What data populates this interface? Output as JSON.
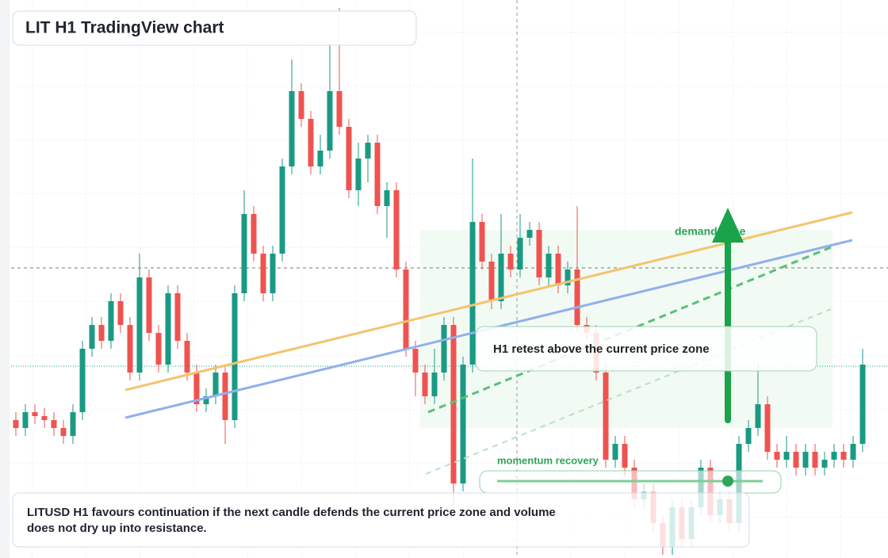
{
  "chart_data": {
    "type": "candlestick",
    "title": "LIT H1 TradingView chart",
    "up_color": "#1a9a83",
    "down_color": "#ef5350",
    "ylim": [
      0,
      704
    ],
    "annotations": {
      "zone": "demand zone",
      "retest": "H1 retest above the current price zone",
      "momentum": "momentum recovery"
    },
    "caption": "LITUSD H1 favours continuation if the next candle defends the current price zone and volume does not dry up into resistance.",
    "candles": [
      [
        174,
        184,
        154,
        164
      ],
      [
        164,
        194,
        154,
        184
      ],
      [
        184,
        194,
        169,
        179
      ],
      [
        179,
        189,
        164,
        174
      ],
      [
        174,
        184,
        154,
        164
      ],
      [
        164,
        174,
        144,
        154
      ],
      [
        154,
        194,
        144,
        184
      ],
      [
        184,
        274,
        174,
        264
      ],
      [
        264,
        304,
        254,
        294
      ],
      [
        294,
        304,
        264,
        274
      ],
      [
        274,
        334,
        264,
        324
      ],
      [
        324,
        334,
        284,
        294
      ],
      [
        294,
        304,
        224,
        234
      ],
      [
        234,
        384,
        224,
        354
      ],
      [
        354,
        364,
        274,
        284
      ],
      [
        284,
        294,
        234,
        244
      ],
      [
        244,
        344,
        234,
        334
      ],
      [
        334,
        344,
        264,
        274
      ],
      [
        274,
        284,
        224,
        234
      ],
      [
        234,
        244,
        184,
        194
      ],
      [
        194,
        214,
        184,
        204
      ],
      [
        204,
        244,
        194,
        234
      ],
      [
        234,
        244,
        144,
        174
      ],
      [
        174,
        344,
        164,
        334
      ],
      [
        334,
        464,
        324,
        434
      ],
      [
        434,
        444,
        374,
        384
      ],
      [
        384,
        394,
        324,
        334
      ],
      [
        334,
        394,
        324,
        384
      ],
      [
        384,
        504,
        374,
        494
      ],
      [
        494,
        629,
        484,
        589
      ],
      [
        589,
        599,
        544,
        554
      ],
      [
        554,
        564,
        484,
        494
      ],
      [
        494,
        534,
        484,
        514
      ],
      [
        514,
        649,
        504,
        589
      ],
      [
        589,
        694,
        534,
        544
      ],
      [
        544,
        554,
        454,
        464
      ],
      [
        464,
        524,
        444,
        504
      ],
      [
        504,
        534,
        474,
        524
      ],
      [
        524,
        534,
        434,
        444
      ],
      [
        444,
        474,
        404,
        464
      ],
      [
        464,
        474,
        354,
        364
      ],
      [
        364,
        374,
        254,
        264
      ],
      [
        264,
        274,
        204,
        234
      ],
      [
        234,
        244,
        194,
        204
      ],
      [
        204,
        264,
        194,
        234
      ],
      [
        234,
        304,
        224,
        294
      ],
      [
        294,
        304,
        64,
        94
      ],
      [
        94,
        254,
        84,
        244
      ],
      [
        244,
        504,
        234,
        424
      ],
      [
        424,
        434,
        364,
        374
      ],
      [
        374,
        384,
        314,
        324
      ],
      [
        324,
        434,
        314,
        384
      ],
      [
        384,
        394,
        354,
        364
      ],
      [
        364,
        434,
        354,
        404
      ],
      [
        404,
        424,
        394,
        414
      ],
      [
        414,
        424,
        344,
        354
      ],
      [
        354,
        394,
        344,
        384
      ],
      [
        384,
        394,
        334,
        344
      ],
      [
        344,
        374,
        334,
        364
      ],
      [
        364,
        444,
        284,
        294
      ],
      [
        294,
        304,
        274,
        284
      ],
      [
        284,
        294,
        224,
        234
      ],
      [
        234,
        244,
        114,
        124
      ],
      [
        124,
        154,
        114,
        144
      ],
      [
        144,
        154,
        104,
        114
      ],
      [
        114,
        124,
        64,
        74
      ],
      [
        74,
        94,
        64,
        84
      ],
      [
        84,
        94,
        34,
        44
      ],
      [
        44,
        54,
        4,
        14
      ],
      [
        14,
        74,
        4,
        64
      ],
      [
        64,
        74,
        14,
        24
      ],
      [
        24,
        74,
        14,
        64
      ],
      [
        64,
        124,
        54,
        114
      ],
      [
        114,
        124,
        44,
        54
      ],
      [
        54,
        84,
        44,
        74
      ],
      [
        74,
        84,
        34,
        44
      ],
      [
        44,
        154,
        34,
        144
      ],
      [
        144,
        174,
        134,
        164
      ],
      [
        164,
        244,
        154,
        194
      ],
      [
        194,
        204,
        124,
        134
      ],
      [
        134,
        144,
        114,
        124
      ],
      [
        124,
        154,
        114,
        134
      ],
      [
        134,
        144,
        104,
        114
      ],
      [
        114,
        144,
        104,
        134
      ],
      [
        134,
        144,
        104,
        114
      ],
      [
        114,
        134,
        104,
        124
      ],
      [
        124,
        144,
        114,
        134
      ],
      [
        134,
        144,
        114,
        124
      ],
      [
        124,
        154,
        114,
        144
      ],
      [
        144,
        264,
        134,
        244
      ]
    ]
  }
}
